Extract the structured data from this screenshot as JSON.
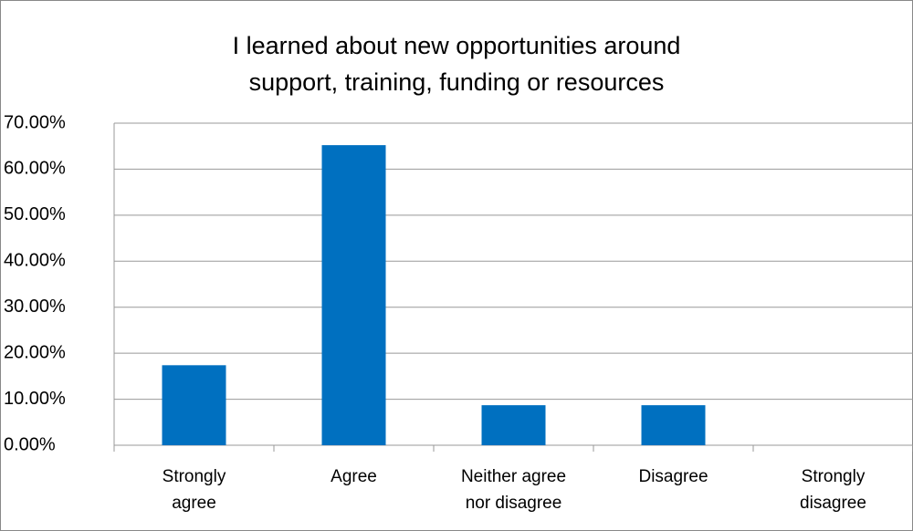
{
  "chart_data": {
    "type": "bar",
    "title": "I learned about new opportunities around support, training, funding or resources",
    "categories": [
      "Strongly agree",
      "Agree",
      "Neither agree nor disagree",
      "Disagree",
      "Strongly disagree"
    ],
    "values": [
      17.39,
      65.22,
      8.7,
      8.7,
      0
    ],
    "color": "#0070c0",
    "ylim": [
      0,
      70
    ],
    "yticks": [
      {
        "value": 0,
        "label": "0.00%"
      },
      {
        "value": 10,
        "label": "10.00%"
      },
      {
        "value": 20,
        "label": "20.00%"
      },
      {
        "value": 30,
        "label": "30.00%"
      },
      {
        "value": 40,
        "label": "40.00%"
      },
      {
        "value": 50,
        "label": "50.00%"
      },
      {
        "value": 60,
        "label": "60.00%"
      },
      {
        "value": 70,
        "label": "70.00%"
      }
    ],
    "grid": true
  }
}
